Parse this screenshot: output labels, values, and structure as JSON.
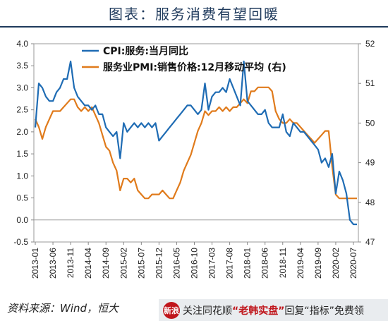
{
  "header": {
    "title": "图表：服务消费有望回暖"
  },
  "source": "资料来源：Wind，恒大",
  "banner": {
    "logo_text": "新浪",
    "text_before": "关注同花顺",
    "app_name": "“老韩实盘”",
    "text_after": "回复“指标”免费领"
  },
  "chart_data": {
    "type": "line",
    "title": "",
    "x_tick_labels": [
      "2013-01",
      "2013-06",
      "2013-11",
      "2014-04",
      "2014-09",
      "2015-02",
      "2015-07",
      "2015-12",
      "2016-05",
      "2016-10",
      "2017-03",
      "2017-08",
      "2018-01",
      "2018-06",
      "2018-11",
      "2019-04",
      "2019-09",
      "2020-02",
      "2020-07"
    ],
    "left_axis": {
      "min": -0.5,
      "max": 4.0,
      "ticks": [
        "-0.5",
        "0.0",
        "0.5",
        "1.0",
        "1.5",
        "2.0",
        "2.5",
        "3.0",
        "3.5",
        "4.0"
      ]
    },
    "right_axis": {
      "min": 47,
      "max": 52,
      "ticks": [
        "47",
        "48",
        "49",
        "50",
        "51",
        "52"
      ]
    },
    "legend_position": "top-left",
    "colors": {
      "cpi": "#1f6cb4",
      "pmi": "#e07b1c"
    },
    "series": [
      {
        "name": "CPI:服务:当月同比",
        "axis": "left",
        "values": [
          {
            "x": "2013-01",
            "y": 2.1
          },
          {
            "x": "2013-02",
            "y": 3.1
          },
          {
            "x": "2013-03",
            "y": 3.0
          },
          {
            "x": "2013-04",
            "y": 2.8
          },
          {
            "x": "2013-05",
            "y": 2.7
          },
          {
            "x": "2013-06",
            "y": 2.7
          },
          {
            "x": "2013-07",
            "y": 2.9
          },
          {
            "x": "2013-08",
            "y": 3.0
          },
          {
            "x": "2013-09",
            "y": 3.2
          },
          {
            "x": "2013-10",
            "y": 3.2
          },
          {
            "x": "2013-11",
            "y": 3.6
          },
          {
            "x": "2013-12",
            "y": 3.0
          },
          {
            "x": "2014-01",
            "y": 2.8
          },
          {
            "x": "2014-02",
            "y": 2.7
          },
          {
            "x": "2014-03",
            "y": 2.6
          },
          {
            "x": "2014-04",
            "y": 2.6
          },
          {
            "x": "2014-05",
            "y": 2.5
          },
          {
            "x": "2014-06",
            "y": 2.6
          },
          {
            "x": "2014-07",
            "y": 2.4
          },
          {
            "x": "2014-08",
            "y": 2.4
          },
          {
            "x": "2014-09",
            "y": 2.1
          },
          {
            "x": "2014-10",
            "y": 2.0
          },
          {
            "x": "2014-11",
            "y": 1.9
          },
          {
            "x": "2014-12",
            "y": 2.0
          },
          {
            "x": "2015-01",
            "y": 1.4
          },
          {
            "x": "2015-02",
            "y": 2.2
          },
          {
            "x": "2015-03",
            "y": 2.0
          },
          {
            "x": "2015-04",
            "y": 2.1
          },
          {
            "x": "2015-05",
            "y": 2.2
          },
          {
            "x": "2015-06",
            "y": 2.1
          },
          {
            "x": "2015-07",
            "y": 2.2
          },
          {
            "x": "2015-08",
            "y": 2.1
          },
          {
            "x": "2015-09",
            "y": 2.2
          },
          {
            "x": "2015-10",
            "y": 2.1
          },
          {
            "x": "2015-11",
            "y": 2.2
          },
          {
            "x": "2015-12",
            "y": 1.8
          },
          {
            "x": "2016-01",
            "y": 1.9
          },
          {
            "x": "2016-02",
            "y": 2.0
          },
          {
            "x": "2016-03",
            "y": 2.1
          },
          {
            "x": "2016-04",
            "y": 2.2
          },
          {
            "x": "2016-05",
            "y": 2.3
          },
          {
            "x": "2016-06",
            "y": 2.4
          },
          {
            "x": "2016-07",
            "y": 2.5
          },
          {
            "x": "2016-08",
            "y": 2.6
          },
          {
            "x": "2016-09",
            "y": 2.6
          },
          {
            "x": "2016-10",
            "y": 2.5
          },
          {
            "x": "2016-11",
            "y": 2.4
          },
          {
            "x": "2016-12",
            "y": 2.5
          },
          {
            "x": "2017-01",
            "y": 3.1
          },
          {
            "x": "2017-02",
            "y": 2.5
          },
          {
            "x": "2017-03",
            "y": 2.8
          },
          {
            "x": "2017-04",
            "y": 2.9
          },
          {
            "x": "2017-05",
            "y": 2.9
          },
          {
            "x": "2017-06",
            "y": 3.0
          },
          {
            "x": "2017-07",
            "y": 2.9
          },
          {
            "x": "2017-08",
            "y": 3.2
          },
          {
            "x": "2017-09",
            "y": 3.0
          },
          {
            "x": "2017-10",
            "y": 2.8
          },
          {
            "x": "2017-11",
            "y": 2.6
          },
          {
            "x": "2017-12",
            "y": 3.6
          },
          {
            "x": "2018-01",
            "y": 2.7
          },
          {
            "x": "2018-02",
            "y": 2.6
          },
          {
            "x": "2018-03",
            "y": 2.5
          },
          {
            "x": "2018-04",
            "y": 2.4
          },
          {
            "x": "2018-05",
            "y": 2.4
          },
          {
            "x": "2018-06",
            "y": 2.5
          },
          {
            "x": "2018-07",
            "y": 2.2
          },
          {
            "x": "2018-08",
            "y": 2.1
          },
          {
            "x": "2018-09",
            "y": 2.1
          },
          {
            "x": "2018-10",
            "y": 2.1
          },
          {
            "x": "2018-11",
            "y": 2.4
          },
          {
            "x": "2018-12",
            "y": 2.0
          },
          {
            "x": "2019-01",
            "y": 1.9
          },
          {
            "x": "2019-02",
            "y": 2.2
          },
          {
            "x": "2019-03",
            "y": 2.1
          },
          {
            "x": "2019-04",
            "y": 2.0
          },
          {
            "x": "2019-05",
            "y": 2.0
          },
          {
            "x": "2019-06",
            "y": 1.9
          },
          {
            "x": "2019-07",
            "y": 1.8
          },
          {
            "x": "2019-08",
            "y": 1.7
          },
          {
            "x": "2019-09",
            "y": 1.6
          },
          {
            "x": "2019-10",
            "y": 1.3
          },
          {
            "x": "2019-11",
            "y": 1.4
          },
          {
            "x": "2019-12",
            "y": 1.2
          },
          {
            "x": "2020-01",
            "y": 1.5
          },
          {
            "x": "2020-02",
            "y": 0.6
          },
          {
            "x": "2020-03",
            "y": 1.1
          },
          {
            "x": "2020-04",
            "y": 0.9
          },
          {
            "x": "2020-05",
            "y": 0.6
          },
          {
            "x": "2020-06",
            "y": 0.0
          },
          {
            "x": "2020-07",
            "y": -0.1
          },
          {
            "x": "2020-08",
            "y": -0.1
          }
        ]
      },
      {
        "name": "服务业PMI:销售价格:12月移动平均 (右)",
        "axis": "right",
        "values": [
          {
            "x": "2013-01",
            "y": 50.1
          },
          {
            "x": "2013-02",
            "y": 49.9
          },
          {
            "x": "2013-03",
            "y": 49.6
          },
          {
            "x": "2013-04",
            "y": 49.9
          },
          {
            "x": "2013-05",
            "y": 50.1
          },
          {
            "x": "2013-06",
            "y": 50.3
          },
          {
            "x": "2013-07",
            "y": 50.3
          },
          {
            "x": "2013-08",
            "y": 50.3
          },
          {
            "x": "2013-09",
            "y": 50.4
          },
          {
            "x": "2013-10",
            "y": 50.5
          },
          {
            "x": "2013-11",
            "y": 50.6
          },
          {
            "x": "2013-12",
            "y": 50.6
          },
          {
            "x": "2014-01",
            "y": 50.4
          },
          {
            "x": "2014-02",
            "y": 50.3
          },
          {
            "x": "2014-03",
            "y": 50.4
          },
          {
            "x": "2014-04",
            "y": 50.3
          },
          {
            "x": "2014-05",
            "y": 50.4
          },
          {
            "x": "2014-06",
            "y": 50.2
          },
          {
            "x": "2014-07",
            "y": 50.0
          },
          {
            "x": "2014-08",
            "y": 49.7
          },
          {
            "x": "2014-09",
            "y": 49.4
          },
          {
            "x": "2014-10",
            "y": 49.3
          },
          {
            "x": "2014-11",
            "y": 49.0
          },
          {
            "x": "2014-12",
            "y": 48.8
          },
          {
            "x": "2015-01",
            "y": 48.3
          },
          {
            "x": "2015-02",
            "y": 48.6
          },
          {
            "x": "2015-03",
            "y": 48.6
          },
          {
            "x": "2015-04",
            "y": 48.5
          },
          {
            "x": "2015-05",
            "y": 48.6
          },
          {
            "x": "2015-06",
            "y": 48.3
          },
          {
            "x": "2015-07",
            "y": 48.2
          },
          {
            "x": "2015-08",
            "y": 48.1
          },
          {
            "x": "2015-09",
            "y": 48.1
          },
          {
            "x": "2015-10",
            "y": 48.2
          },
          {
            "x": "2015-11",
            "y": 48.2
          },
          {
            "x": "2015-12",
            "y": 48.2
          },
          {
            "x": "2016-01",
            "y": 48.3
          },
          {
            "x": "2016-02",
            "y": 48.2
          },
          {
            "x": "2016-03",
            "y": 48.1
          },
          {
            "x": "2016-04",
            "y": 48.1
          },
          {
            "x": "2016-05",
            "y": 48.3
          },
          {
            "x": "2016-06",
            "y": 48.5
          },
          {
            "x": "2016-07",
            "y": 48.8
          },
          {
            "x": "2016-08",
            "y": 49.0
          },
          {
            "x": "2016-09",
            "y": 49.2
          },
          {
            "x": "2016-10",
            "y": 49.5
          },
          {
            "x": "2016-11",
            "y": 49.8
          },
          {
            "x": "2016-12",
            "y": 50.0
          },
          {
            "x": "2017-01",
            "y": 50.3
          },
          {
            "x": "2017-02",
            "y": 50.2
          },
          {
            "x": "2017-03",
            "y": 50.3
          },
          {
            "x": "2017-04",
            "y": 50.3
          },
          {
            "x": "2017-05",
            "y": 50.4
          },
          {
            "x": "2017-06",
            "y": 50.3
          },
          {
            "x": "2017-07",
            "y": 50.4
          },
          {
            "x": "2017-08",
            "y": 50.3
          },
          {
            "x": "2017-09",
            "y": 50.4
          },
          {
            "x": "2017-10",
            "y": 50.4
          },
          {
            "x": "2017-11",
            "y": 50.5
          },
          {
            "x": "2017-12",
            "y": 50.6
          },
          {
            "x": "2018-01",
            "y": 50.5
          },
          {
            "x": "2018-02",
            "y": 50.8
          },
          {
            "x": "2018-03",
            "y": 50.8
          },
          {
            "x": "2018-04",
            "y": 50.9
          },
          {
            "x": "2018-05",
            "y": 50.9
          },
          {
            "x": "2018-06",
            "y": 50.9
          },
          {
            "x": "2018-07",
            "y": 50.9
          },
          {
            "x": "2018-08",
            "y": 50.8
          },
          {
            "x": "2018-09",
            "y": 50.3
          },
          {
            "x": "2018-10",
            "y": 50.1
          },
          {
            "x": "2018-11",
            "y": 50.0
          },
          {
            "x": "2018-12",
            "y": 50.0
          },
          {
            "x": "2019-01",
            "y": 50.1
          },
          {
            "x": "2019-02",
            "y": 50.0
          },
          {
            "x": "2019-03",
            "y": 50.0
          },
          {
            "x": "2019-04",
            "y": 49.9
          },
          {
            "x": "2019-05",
            "y": 49.8
          },
          {
            "x": "2019-06",
            "y": 49.7
          },
          {
            "x": "2019-07",
            "y": 49.6
          },
          {
            "x": "2019-08",
            "y": 49.5
          },
          {
            "x": "2019-09",
            "y": 49.6
          },
          {
            "x": "2019-10",
            "y": 49.7
          },
          {
            "x": "2019-11",
            "y": 49.8
          },
          {
            "x": "2019-12",
            "y": 49.8
          },
          {
            "x": "2020-01",
            "y": 48.9
          },
          {
            "x": "2020-02",
            "y": 48.2
          },
          {
            "x": "2020-03",
            "y": 48.1
          },
          {
            "x": "2020-04",
            "y": 48.1
          },
          {
            "x": "2020-05",
            "y": 48.1
          },
          {
            "x": "2020-06",
            "y": 48.1
          },
          {
            "x": "2020-07",
            "y": 48.1
          },
          {
            "x": "2020-08",
            "y": 48.1
          }
        ]
      }
    ]
  }
}
